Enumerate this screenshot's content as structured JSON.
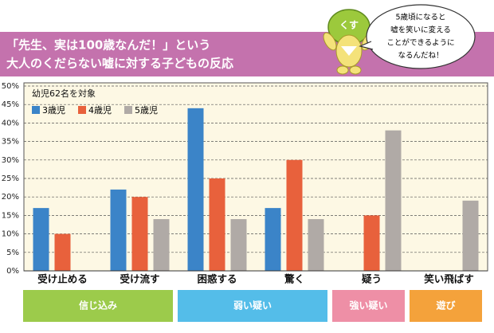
{
  "chart_data": {
    "type": "bar",
    "title": [
      "「先生、実は100歳なんだ！」という",
      "大人のくだらない嘘に対する子どもの反応"
    ],
    "subtitle": "幼児62名を対象",
    "mascot_label": "くす",
    "speech_bubble": [
      "5歳頃になると",
      "嘘を笑いに変える",
      "ことができるように",
      "なるんだね！"
    ],
    "categories": [
      "受け止める",
      "受け流す",
      "困惑する",
      "驚く",
      "疑う",
      "笑い飛ばす"
    ],
    "series": [
      {
        "name": "3歳児",
        "color": "#3b84c8",
        "values": [
          17,
          22,
          44,
          17,
          0,
          0
        ]
      },
      {
        "name": "4歳児",
        "color": "#e8613c",
        "values": [
          10,
          20,
          25,
          30,
          15,
          0
        ]
      },
      {
        "name": "5歳児",
        "color": "#b0aaa6",
        "values": [
          0,
          14,
          14,
          14,
          38,
          19
        ]
      }
    ],
    "ylim": [
      0,
      50
    ],
    "yticks": [
      {
        "value": 0,
        "label": "0%"
      },
      {
        "value": 5,
        "label": "5%"
      },
      {
        "value": 10,
        "label": "10%"
      },
      {
        "value": 15,
        "label": "15%"
      },
      {
        "value": 20,
        "label": "20%"
      },
      {
        "value": 25,
        "label": "25%"
      },
      {
        "value": 30,
        "label": "30%"
      },
      {
        "value": 35,
        "label": "35%"
      },
      {
        "value": 40,
        "label": "40%"
      },
      {
        "value": 45,
        "label": "45%"
      },
      {
        "value": 50,
        "label": "50%"
      }
    ],
    "grid": true,
    "groups": [
      {
        "label": "信じ込み",
        "span": 2,
        "color": "#9ccb4b"
      },
      {
        "label": "弱い疑い",
        "span": 2,
        "color": "#54bde9"
      },
      {
        "label": "強い疑い",
        "span": 1,
        "color": "#ee8fa6"
      },
      {
        "label": "遊び",
        "span": 1,
        "color": "#f4a23b"
      }
    ]
  }
}
